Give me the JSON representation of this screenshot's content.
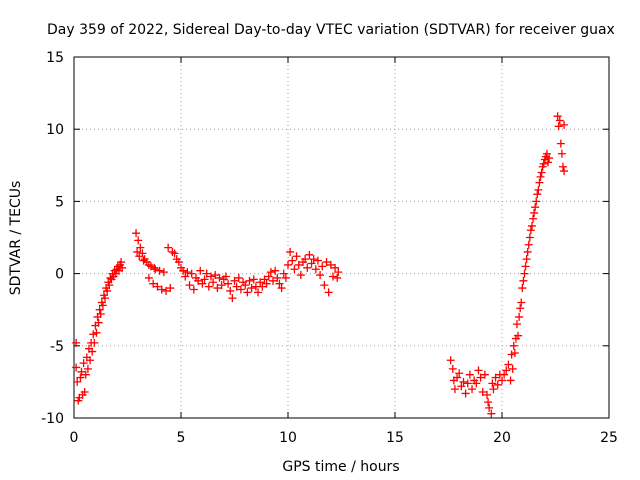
{
  "chart_data": {
    "type": "scatter",
    "title": "Day 359 of 2022, Sidereal Day-to-day VTEC variation (SDTVAR) for receiver guax",
    "xlabel": "GPS time / hours",
    "ylabel": "SDTVAR / TECUs",
    "xlim": [
      0,
      25
    ],
    "ylim": [
      -10,
      15
    ],
    "xticks": [
      0,
      5,
      10,
      15,
      20,
      25
    ],
    "yticks": [
      -10,
      -5,
      0,
      5,
      10,
      15
    ],
    "x_tick_labels": [
      "0",
      "5",
      "10",
      "15",
      "20",
      "25"
    ],
    "y_tick_labels": [
      "-10",
      "-5",
      "0",
      "5",
      "10",
      "15"
    ],
    "grid": true,
    "marker": "+",
    "color": "#ff0000",
    "series": [
      {
        "name": "guax",
        "points": [
          [
            0.1,
            -4.8
          ],
          [
            0.1,
            -6.5
          ],
          [
            0.15,
            -7.5
          ],
          [
            0.2,
            -8.8
          ],
          [
            0.25,
            -8.6
          ],
          [
            0.3,
            -7.2
          ],
          [
            0.35,
            -6.8
          ],
          [
            0.4,
            -8.4
          ],
          [
            0.45,
            -6.2
          ],
          [
            0.5,
            -8.2
          ],
          [
            0.55,
            -7.0
          ],
          [
            0.6,
            -5.8
          ],
          [
            0.65,
            -6.6
          ],
          [
            0.7,
            -5.2
          ],
          [
            0.75,
            -6.0
          ],
          [
            0.8,
            -4.8
          ],
          [
            0.85,
            -5.4
          ],
          [
            0.9,
            -4.2
          ],
          [
            0.95,
            -4.8
          ],
          [
            1.0,
            -3.6
          ],
          [
            1.05,
            -4.1
          ],
          [
            1.1,
            -3.0
          ],
          [
            1.15,
            -3.4
          ],
          [
            1.2,
            -2.5
          ],
          [
            1.25,
            -2.8
          ],
          [
            1.3,
            -2.0
          ],
          [
            1.35,
            -2.2
          ],
          [
            1.4,
            -1.5
          ],
          [
            1.45,
            -1.7
          ],
          [
            1.5,
            -1.0
          ],
          [
            1.55,
            -1.2
          ],
          [
            1.6,
            -0.6
          ],
          [
            1.65,
            -0.8
          ],
          [
            1.7,
            -0.3
          ],
          [
            1.75,
            -0.4
          ],
          [
            1.8,
            0.0
          ],
          [
            1.85,
            -0.2
          ],
          [
            1.9,
            0.2
          ],
          [
            1.95,
            0.0
          ],
          [
            2.0,
            0.3
          ],
          [
            2.05,
            0.5
          ],
          [
            2.1,
            0.2
          ],
          [
            2.15,
            0.6
          ],
          [
            2.2,
            0.8
          ],
          [
            2.25,
            0.4
          ],
          [
            2.9,
            2.8
          ],
          [
            2.95,
            1.5
          ],
          [
            3.0,
            2.3
          ],
          [
            3.05,
            1.2
          ],
          [
            3.1,
            1.8
          ],
          [
            3.2,
            1.4
          ],
          [
            3.25,
            0.9
          ],
          [
            3.3,
            1.0
          ],
          [
            3.4,
            0.8
          ],
          [
            3.5,
            0.6
          ],
          [
            3.5,
            -0.3
          ],
          [
            3.6,
            0.5
          ],
          [
            3.7,
            -0.7
          ],
          [
            3.75,
            0.4
          ],
          [
            3.8,
            0.3
          ],
          [
            3.9,
            -0.9
          ],
          [
            4.0,
            0.2
          ],
          [
            4.1,
            -1.1
          ],
          [
            4.2,
            0.1
          ],
          [
            4.3,
            -1.2
          ],
          [
            4.4,
            1.8
          ],
          [
            4.5,
            -1.0
          ],
          [
            4.6,
            1.5
          ],
          [
            4.7,
            1.4
          ],
          [
            4.8,
            1.0
          ],
          [
            4.9,
            0.8
          ],
          [
            5.0,
            0.4
          ],
          [
            5.1,
            0.2
          ],
          [
            5.2,
            -0.2
          ],
          [
            5.3,
            0.1
          ],
          [
            5.4,
            -0.8
          ],
          [
            5.5,
            0.0
          ],
          [
            5.6,
            -1.1
          ],
          [
            5.7,
            -0.3
          ],
          [
            5.8,
            -0.5
          ],
          [
            5.9,
            0.2
          ],
          [
            6.0,
            -0.7
          ],
          [
            6.1,
            -0.4
          ],
          [
            6.2,
            0.0
          ],
          [
            6.3,
            -0.9
          ],
          [
            6.4,
            -0.2
          ],
          [
            6.5,
            -0.6
          ],
          [
            6.6,
            -0.1
          ],
          [
            6.7,
            -1.0
          ],
          [
            6.8,
            -0.3
          ],
          [
            6.9,
            -0.8
          ],
          [
            7.0,
            -0.4
          ],
          [
            7.1,
            -0.2
          ],
          [
            7.2,
            -0.7
          ],
          [
            7.3,
            -1.2
          ],
          [
            7.4,
            -1.7
          ],
          [
            7.5,
            -0.5
          ],
          [
            7.6,
            -0.9
          ],
          [
            7.7,
            -0.3
          ],
          [
            7.8,
            -1.1
          ],
          [
            7.9,
            -0.6
          ],
          [
            8.0,
            -0.8
          ],
          [
            8.1,
            -1.3
          ],
          [
            8.2,
            -0.5
          ],
          [
            8.3,
            -1.0
          ],
          [
            8.4,
            -0.4
          ],
          [
            8.5,
            -0.9
          ],
          [
            8.6,
            -1.3
          ],
          [
            8.7,
            -0.6
          ],
          [
            8.8,
            -0.9
          ],
          [
            8.9,
            -0.4
          ],
          [
            9.0,
            -0.7
          ],
          [
            9.1,
            -0.2
          ],
          [
            9.2,
            0.1
          ],
          [
            9.3,
            -0.5
          ],
          [
            9.4,
            0.2
          ],
          [
            9.5,
            -0.3
          ],
          [
            9.6,
            -0.7
          ],
          [
            9.7,
            -1.0
          ],
          [
            9.8,
            0.0
          ],
          [
            9.9,
            -0.3
          ],
          [
            10.0,
            0.6
          ],
          [
            10.1,
            1.5
          ],
          [
            10.2,
            0.9
          ],
          [
            10.3,
            0.3
          ],
          [
            10.4,
            1.2
          ],
          [
            10.5,
            0.6
          ],
          [
            10.6,
            -0.1
          ],
          [
            10.7,
            0.8
          ],
          [
            10.8,
            1.0
          ],
          [
            10.9,
            0.4
          ],
          [
            11.0,
            1.3
          ],
          [
            11.1,
            0.7
          ],
          [
            11.2,
            1.0
          ],
          [
            11.3,
            0.3
          ],
          [
            11.4,
            0.9
          ],
          [
            11.5,
            -0.1
          ],
          [
            11.6,
            0.5
          ],
          [
            11.7,
            -0.8
          ],
          [
            11.8,
            0.8
          ],
          [
            11.9,
            -1.3
          ],
          [
            12.0,
            0.6
          ],
          [
            12.1,
            -0.2
          ],
          [
            12.2,
            0.4
          ],
          [
            12.3,
            -0.3
          ],
          [
            12.35,
            0.1
          ],
          [
            17.6,
            -6.0
          ],
          [
            17.7,
            -6.6
          ],
          [
            17.75,
            -7.4
          ],
          [
            17.8,
            -8.0
          ],
          [
            17.9,
            -7.2
          ],
          [
            18.0,
            -6.9
          ],
          [
            18.1,
            -7.8
          ],
          [
            18.2,
            -7.5
          ],
          [
            18.3,
            -8.3
          ],
          [
            18.4,
            -7.6
          ],
          [
            18.5,
            -7.0
          ],
          [
            18.6,
            -8.0
          ],
          [
            18.7,
            -7.4
          ],
          [
            18.8,
            -7.6
          ],
          [
            18.9,
            -6.7
          ],
          [
            19.0,
            -7.2
          ],
          [
            19.1,
            -8.2
          ],
          [
            19.2,
            -7.0
          ],
          [
            19.3,
            -8.4
          ],
          [
            19.35,
            -8.9
          ],
          [
            19.4,
            -9.3
          ],
          [
            19.5,
            -9.7
          ],
          [
            19.55,
            -7.6
          ],
          [
            19.6,
            -8.0
          ],
          [
            19.7,
            -7.2
          ],
          [
            19.8,
            -7.7
          ],
          [
            19.9,
            -7.0
          ],
          [
            20.0,
            -7.4
          ],
          [
            20.1,
            -7.0
          ],
          [
            20.2,
            -6.7
          ],
          [
            20.3,
            -6.3
          ],
          [
            20.4,
            -7.4
          ],
          [
            20.45,
            -5.6
          ],
          [
            20.5,
            -6.6
          ],
          [
            20.55,
            -5.0
          ],
          [
            20.6,
            -5.5
          ],
          [
            20.65,
            -4.5
          ],
          [
            20.7,
            -3.5
          ],
          [
            20.75,
            -4.3
          ],
          [
            20.8,
            -3.0
          ],
          [
            20.85,
            -2.4
          ],
          [
            20.9,
            -2.0
          ],
          [
            20.95,
            -1.0
          ],
          [
            21.0,
            -0.5
          ],
          [
            21.05,
            0.0
          ],
          [
            21.1,
            0.5
          ],
          [
            21.15,
            1.0
          ],
          [
            21.2,
            1.5
          ],
          [
            21.25,
            2.0
          ],
          [
            21.3,
            2.5
          ],
          [
            21.35,
            3.0
          ],
          [
            21.4,
            3.3
          ],
          [
            21.45,
            3.8
          ],
          [
            21.5,
            4.2
          ],
          [
            21.55,
            4.6
          ],
          [
            21.6,
            5.0
          ],
          [
            21.65,
            5.5
          ],
          [
            21.7,
            5.8
          ],
          [
            21.75,
            6.3
          ],
          [
            21.8,
            6.7
          ],
          [
            21.85,
            7.0
          ],
          [
            21.9,
            7.4
          ],
          [
            21.95,
            7.6
          ],
          [
            22.0,
            7.9
          ],
          [
            22.05,
            8.1
          ],
          [
            22.1,
            8.3
          ],
          [
            22.15,
            7.7
          ],
          [
            22.2,
            8.0
          ],
          [
            22.6,
            10.9
          ],
          [
            22.65,
            10.2
          ],
          [
            22.7,
            10.6
          ],
          [
            22.75,
            9.0
          ],
          [
            22.8,
            8.3
          ],
          [
            22.85,
            7.4
          ],
          [
            22.9,
            7.1
          ],
          [
            22.9,
            10.3
          ]
        ]
      }
    ]
  }
}
